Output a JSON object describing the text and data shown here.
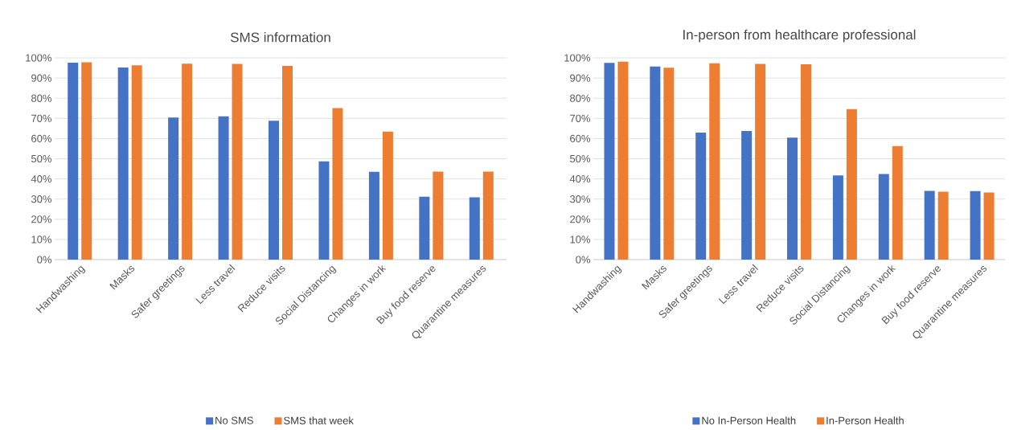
{
  "chart_data": [
    {
      "type": "bar",
      "title": "SMS information",
      "categories": [
        "Handwashing",
        "Masks",
        "Safer greetings",
        "Less travel",
        "Reduce visits",
        "Social Distancing",
        "Changes in work",
        "Buy food reserve",
        "Quarantine measures"
      ],
      "series": [
        {
          "name": "No SMS",
          "color": "#4472c4",
          "values": [
            97.6,
            95.2,
            70.4,
            71,
            68.8,
            48.7,
            43.5,
            31.2,
            30.9
          ]
        },
        {
          "name": "SMS that week",
          "color": "#ed7d31",
          "values": [
            97.8,
            96.3,
            97.1,
            97,
            96,
            75.1,
            63.4,
            43.6,
            43.6
          ]
        }
      ],
      "ylim": [
        0,
        100
      ],
      "yticks": [
        {
          "value": 0,
          "label": "0%"
        },
        {
          "value": 10,
          "label": "10%"
        },
        {
          "value": 20,
          "label": "20%"
        },
        {
          "value": 30,
          "label": "30%"
        },
        {
          "value": 40,
          "label": "40%"
        },
        {
          "value": 50,
          "label": "50%"
        },
        {
          "value": 60,
          "label": "60%"
        },
        {
          "value": 70,
          "label": "70%"
        },
        {
          "value": 80,
          "label": "80%"
        },
        {
          "value": 90,
          "label": "90%"
        },
        {
          "value": 100,
          "label": "100%"
        }
      ],
      "grid": "y",
      "legend": "bottom"
    },
    {
      "type": "bar",
      "title": "In-person from healthcare professional",
      "categories": [
        "Handwashing",
        "Masks",
        "Safer greetings",
        "Less travel",
        "Reduce visits",
        "Social Distancing",
        "Changes in work",
        "Buy food reserve",
        "Quarantine measures"
      ],
      "series": [
        {
          "name": "No In-Person Health",
          "color": "#4472c4",
          "values": [
            97.5,
            95.7,
            62.9,
            63.7,
            60.5,
            41.7,
            42.4,
            34.1,
            34
          ]
        },
        {
          "name": "In-Person Health",
          "color": "#ed7d31",
          "values": [
            98.1,
            95.1,
            97.3,
            97,
            96.8,
            74.6,
            56.3,
            33.7,
            33.3
          ]
        }
      ],
      "ylim": [
        0,
        100
      ],
      "yticks": [
        {
          "value": 0,
          "label": "0%"
        },
        {
          "value": 10,
          "label": "10%"
        },
        {
          "value": 20,
          "label": "20%"
        },
        {
          "value": 30,
          "label": "30%"
        },
        {
          "value": 40,
          "label": "40%"
        },
        {
          "value": 50,
          "label": "50%"
        },
        {
          "value": 60,
          "label": "60%"
        },
        {
          "value": 70,
          "label": "70%"
        },
        {
          "value": 80,
          "label": "80%"
        },
        {
          "value": 90,
          "label": "90%"
        },
        {
          "value": 100,
          "label": "100%"
        }
      ],
      "grid": "y",
      "legend": "bottom"
    }
  ]
}
